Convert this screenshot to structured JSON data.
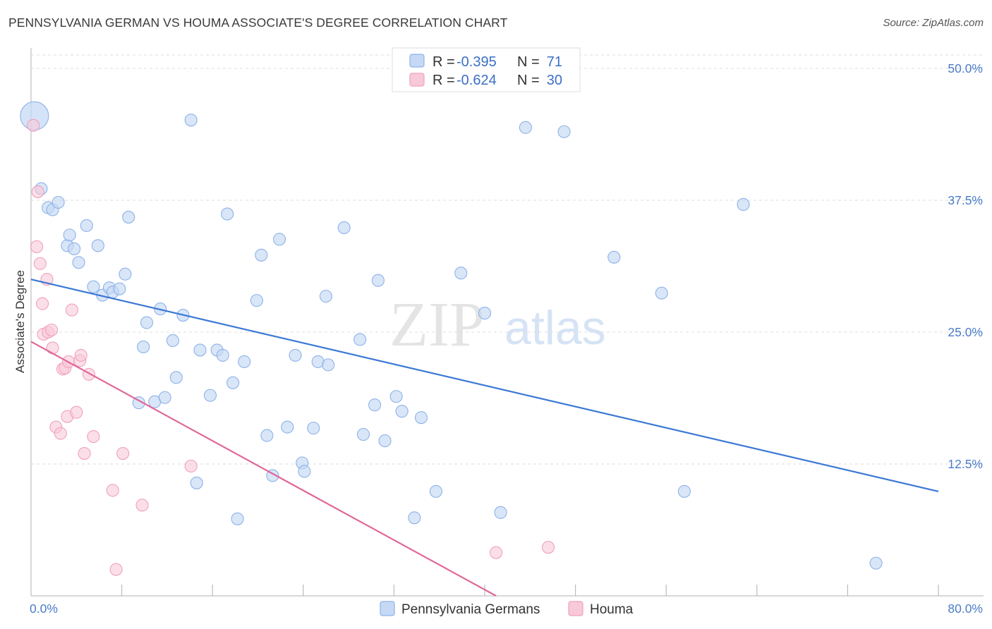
{
  "header": {
    "title": "PENNSYLVANIA GERMAN VS HOUMA ASSOCIATE'S DEGREE CORRELATION CHART",
    "source": "Source: ZipAtlas.com"
  },
  "watermark": {
    "zip": "ZIP",
    "atlas": "atlas"
  },
  "colors": {
    "blue_fill": "#c5d9f5",
    "blue_stroke": "#8db2e8",
    "blue_line": "#3b78d4",
    "pink_fill": "#f8c9d8",
    "pink_stroke": "#f0a0bb",
    "pink_line": "#e0689a",
    "tick_text": "#4a7cc9",
    "grid": "#dddddd"
  },
  "legend_top": {
    "rows": [
      {
        "r_label": "R = ",
        "r_value": "-0.395",
        "n_label": "N = ",
        "n_value": "71"
      },
      {
        "r_label": "R = ",
        "r_value": "-0.624",
        "n_label": "N = ",
        "n_value": "30"
      }
    ]
  },
  "legend_bottom": {
    "series1": "Pennsylvania Germans",
    "series2": "Houma"
  },
  "chart_data": {
    "type": "scatter",
    "title": "PENNSYLVANIA GERMAN VS HOUMA ASSOCIATE'S DEGREE CORRELATION CHART",
    "xlabel": "",
    "ylabel": "Associate's Degree",
    "xlim": [
      0,
      80
    ],
    "ylim": [
      0,
      50
    ],
    "x_tick_labels": [
      "0.0%",
      "80.0%"
    ],
    "y_ticks": [
      12.5,
      25.0,
      37.5,
      50.0
    ],
    "y_tick_labels": [
      "12.5%",
      "25.0%",
      "37.5%",
      "50.0%"
    ],
    "grid": true,
    "series": [
      {
        "name": "Pennsylvania Germans",
        "r": -0.395,
        "n": 71,
        "trend": {
          "x": [
            0,
            80
          ],
          "y": [
            30.0,
            9.9
          ]
        },
        "points": [
          {
            "x": 0.3,
            "y": 45.5,
            "big": true
          },
          {
            "x": 0.9,
            "y": 38.6
          },
          {
            "x": 1.5,
            "y": 36.8
          },
          {
            "x": 1.9,
            "y": 36.6
          },
          {
            "x": 2.4,
            "y": 37.3
          },
          {
            "x": 3.2,
            "y": 33.2
          },
          {
            "x": 3.4,
            "y": 34.2
          },
          {
            "x": 3.8,
            "y": 32.9
          },
          {
            "x": 4.2,
            "y": 31.6
          },
          {
            "x": 4.9,
            "y": 35.1
          },
          {
            "x": 5.5,
            "y": 29.3
          },
          {
            "x": 5.9,
            "y": 33.2
          },
          {
            "x": 6.3,
            "y": 28.5
          },
          {
            "x": 6.9,
            "y": 29.2
          },
          {
            "x": 7.2,
            "y": 28.8
          },
          {
            "x": 7.8,
            "y": 29.1
          },
          {
            "x": 8.3,
            "y": 30.5
          },
          {
            "x": 8.6,
            "y": 35.9
          },
          {
            "x": 9.5,
            "y": 18.3
          },
          {
            "x": 9.9,
            "y": 23.6
          },
          {
            "x": 10.2,
            "y": 25.9
          },
          {
            "x": 10.9,
            "y": 18.4
          },
          {
            "x": 11.4,
            "y": 27.2
          },
          {
            "x": 11.8,
            "y": 18.8
          },
          {
            "x": 12.5,
            "y": 24.2
          },
          {
            "x": 12.8,
            "y": 20.7
          },
          {
            "x": 13.4,
            "y": 26.6
          },
          {
            "x": 14.1,
            "y": 45.1
          },
          {
            "x": 14.6,
            "y": 10.7
          },
          {
            "x": 14.9,
            "y": 23.3
          },
          {
            "x": 15.8,
            "y": 19.0
          },
          {
            "x": 16.4,
            "y": 23.3
          },
          {
            "x": 16.9,
            "y": 22.8
          },
          {
            "x": 17.3,
            "y": 36.2
          },
          {
            "x": 17.8,
            "y": 20.2
          },
          {
            "x": 18.2,
            "y": 7.3
          },
          {
            "x": 18.8,
            "y": 22.2
          },
          {
            "x": 19.9,
            "y": 28.0
          },
          {
            "x": 20.3,
            "y": 32.3
          },
          {
            "x": 20.8,
            "y": 15.2
          },
          {
            "x": 21.3,
            "y": 11.4
          },
          {
            "x": 21.9,
            "y": 33.8
          },
          {
            "x": 22.6,
            "y": 16.0
          },
          {
            "x": 23.3,
            "y": 22.8
          },
          {
            "x": 23.9,
            "y": 12.6
          },
          {
            "x": 24.1,
            "y": 11.8
          },
          {
            "x": 24.9,
            "y": 15.9
          },
          {
            "x": 25.3,
            "y": 22.2
          },
          {
            "x": 26.0,
            "y": 28.4
          },
          {
            "x": 26.2,
            "y": 21.9
          },
          {
            "x": 27.6,
            "y": 34.9
          },
          {
            "x": 29.0,
            "y": 24.3
          },
          {
            "x": 29.3,
            "y": 15.3
          },
          {
            "x": 30.3,
            "y": 18.1
          },
          {
            "x": 30.6,
            "y": 29.9
          },
          {
            "x": 31.2,
            "y": 14.7
          },
          {
            "x": 32.2,
            "y": 18.9
          },
          {
            "x": 32.7,
            "y": 17.5
          },
          {
            "x": 33.8,
            "y": 7.4
          },
          {
            "x": 34.4,
            "y": 16.9
          },
          {
            "x": 35.7,
            "y": 9.9
          },
          {
            "x": 37.9,
            "y": 30.6
          },
          {
            "x": 40.0,
            "y": 26.8
          },
          {
            "x": 41.4,
            "y": 7.9
          },
          {
            "x": 43.6,
            "y": 44.4
          },
          {
            "x": 47.0,
            "y": 44.0
          },
          {
            "x": 51.4,
            "y": 32.1
          },
          {
            "x": 55.6,
            "y": 28.7
          },
          {
            "x": 57.6,
            "y": 9.9
          },
          {
            "x": 62.8,
            "y": 37.1
          },
          {
            "x": 74.5,
            "y": 3.1
          }
        ]
      },
      {
        "name": "Houma",
        "r": -0.624,
        "n": 30,
        "trend": {
          "x": [
            0,
            41
          ],
          "y": [
            24.1,
            0.0
          ]
        },
        "points": [
          {
            "x": 0.2,
            "y": 44.6
          },
          {
            "x": 0.6,
            "y": 38.3
          },
          {
            "x": 0.5,
            "y": 33.1
          },
          {
            "x": 0.8,
            "y": 31.5
          },
          {
            "x": 1.0,
            "y": 27.7
          },
          {
            "x": 1.1,
            "y": 24.8
          },
          {
            "x": 1.4,
            "y": 30.0
          },
          {
            "x": 1.5,
            "y": 25.0
          },
          {
            "x": 1.8,
            "y": 25.2
          },
          {
            "x": 1.9,
            "y": 23.5
          },
          {
            "x": 2.2,
            "y": 16.0
          },
          {
            "x": 2.6,
            "y": 15.4
          },
          {
            "x": 2.8,
            "y": 21.5
          },
          {
            "x": 3.0,
            "y": 21.6
          },
          {
            "x": 3.2,
            "y": 17.0
          },
          {
            "x": 3.3,
            "y": 22.2
          },
          {
            "x": 3.6,
            "y": 27.1
          },
          {
            "x": 4.0,
            "y": 17.4
          },
          {
            "x": 4.3,
            "y": 22.3
          },
          {
            "x": 4.4,
            "y": 22.8
          },
          {
            "x": 4.7,
            "y": 13.5
          },
          {
            "x": 5.1,
            "y": 21.0
          },
          {
            "x": 5.5,
            "y": 15.1
          },
          {
            "x": 7.2,
            "y": 10.0
          },
          {
            "x": 7.5,
            "y": 2.5
          },
          {
            "x": 8.1,
            "y": 13.5
          },
          {
            "x": 9.8,
            "y": 8.6
          },
          {
            "x": 14.1,
            "y": 12.3
          },
          {
            "x": 41.0,
            "y": 4.1
          },
          {
            "x": 45.6,
            "y": 4.6
          }
        ]
      }
    ]
  }
}
